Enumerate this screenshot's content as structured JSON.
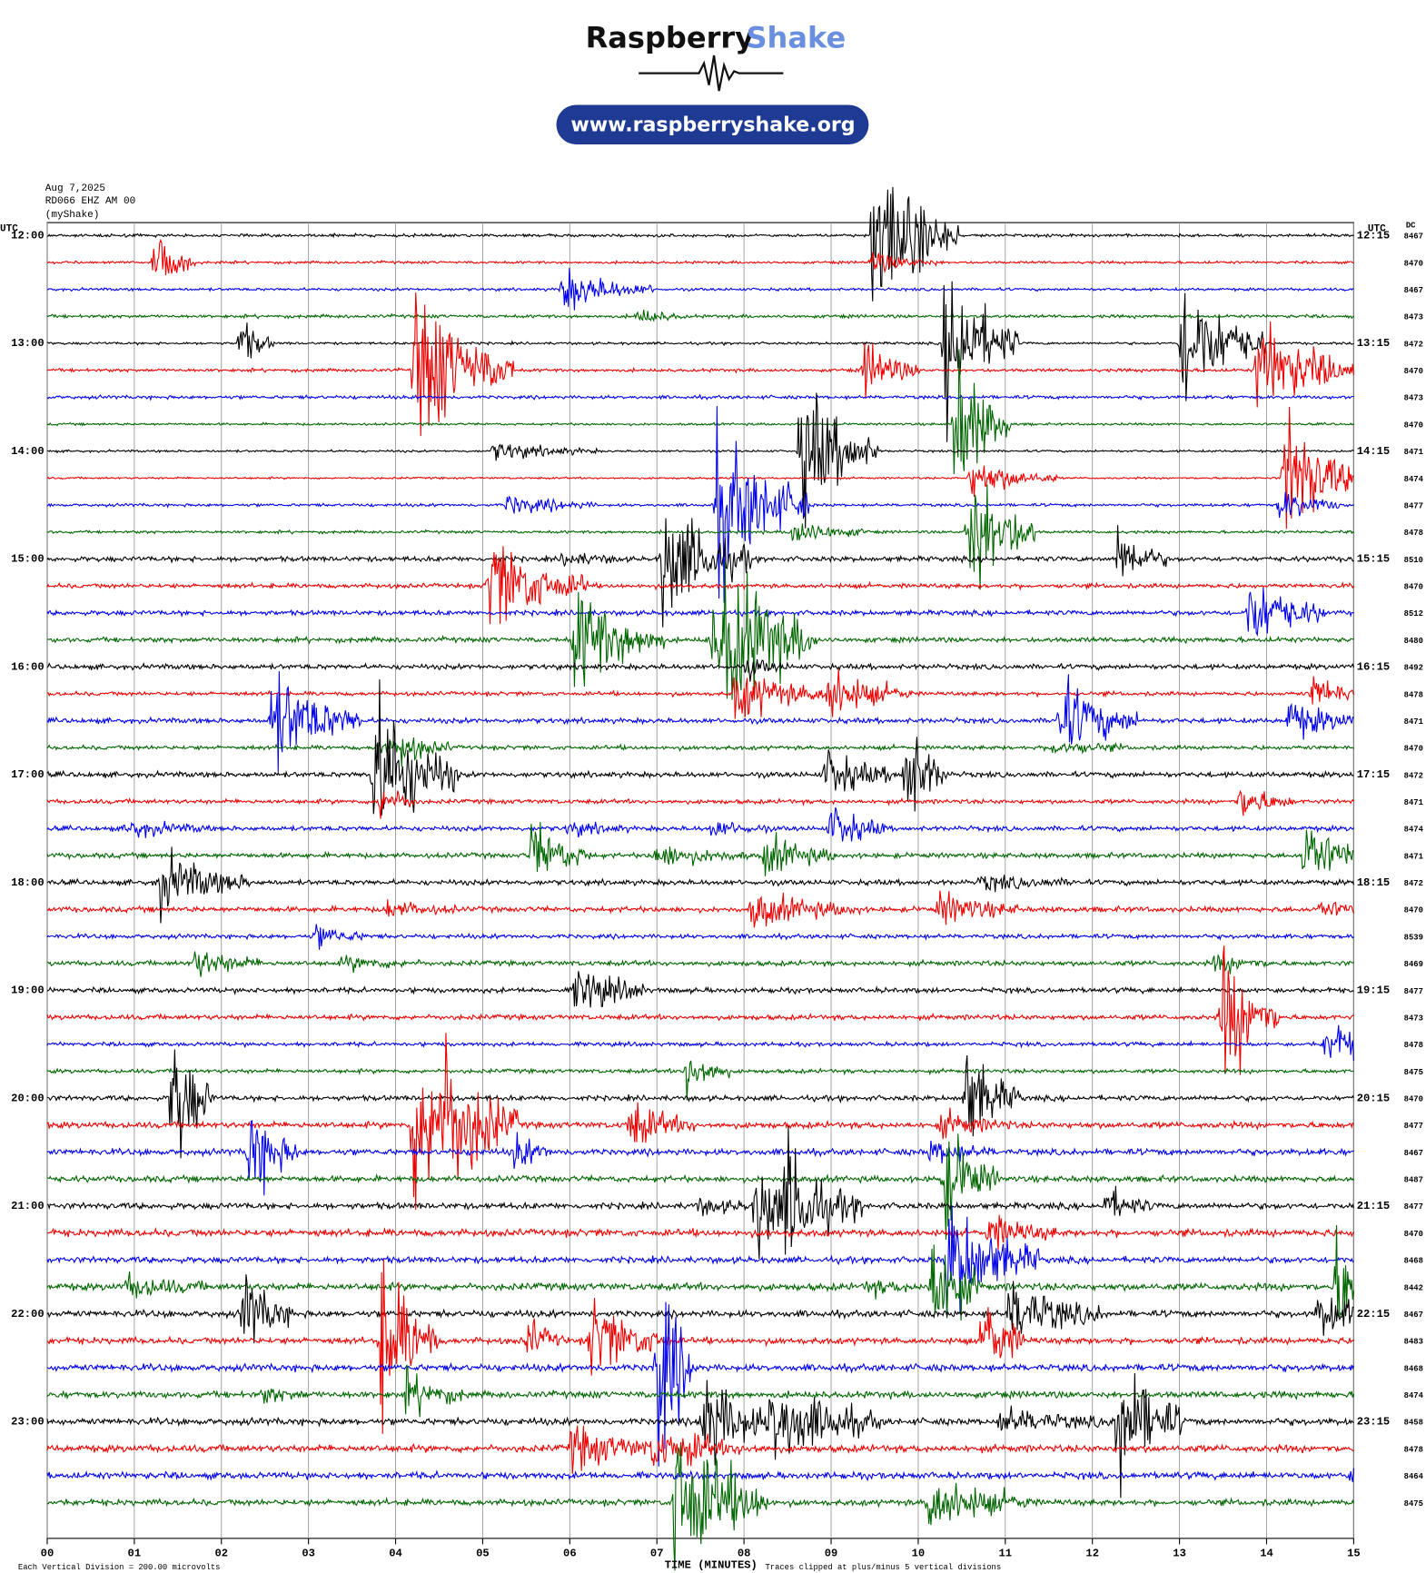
{
  "header": {
    "logo_left": "Raspberry",
    "logo_right": "Shake",
    "url": "www.raspberryshake.org"
  },
  "info": {
    "date": "Aug 7,2025",
    "station": "RD066 EHZ AM 00",
    "source": "(myShake)"
  },
  "plot": {
    "utc_left": "UTC",
    "utc_right": "UTC",
    "dc": "DC",
    "left_labels": [
      "12:00",
      "13:00",
      "14:00",
      "15:00",
      "16:00",
      "17:00",
      "18:00",
      "19:00",
      "20:00",
      "21:00",
      "22:00",
      "23:00"
    ],
    "right_labels": [
      "12:15",
      "13:15",
      "14:15",
      "15:15",
      "16:15",
      "17:15",
      "18:15",
      "19:15",
      "20:15",
      "21:15",
      "22:15",
      "23:15"
    ],
    "dc_values": [
      8467,
      8470,
      8467,
      8473,
      8472,
      8470,
      8473,
      8470,
      8471,
      8474,
      8477,
      8478,
      8510,
      8470,
      8512,
      8480,
      8492,
      8478,
      8471,
      8470,
      8472,
      8471,
      8474,
      8471,
      8472,
      8470,
      8539,
      8469,
      8477,
      8473,
      8478,
      8475,
      8470,
      8477,
      8467,
      8487,
      8477,
      8470,
      8468,
      8442,
      8467,
      8483,
      8468,
      8474,
      8458,
      8478,
      8464,
      8475
    ],
    "x_ticks": [
      "00",
      "01",
      "02",
      "03",
      "04",
      "05",
      "06",
      "07",
      "08",
      "09",
      "10",
      "11",
      "12",
      "13",
      "14",
      "15"
    ],
    "x_label": "TIME (MINUTES)",
    "footer_left": "Each Vertical Division =  200.00 microvolts",
    "footer_right": "Traces clipped at plus/minus 5 vertical divisions"
  }
}
